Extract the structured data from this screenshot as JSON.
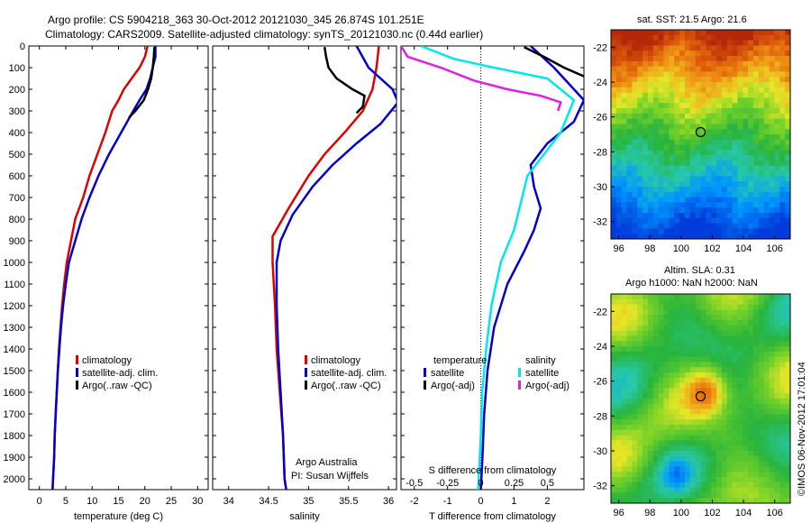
{
  "header": {
    "line1": "Argo profile: CS 5904218_363 30-Oct-2012 20121030_345 26.874S 101.251E",
    "line2": "Climatology: CARS2009. Satellite-adjusted climatology: synTS_20121030.nc (0.44d earlier)"
  },
  "colors": {
    "clim": "#e00000",
    "sat": "#0000d0",
    "argo": "#000000",
    "cyan": "#00e8e8",
    "magenta": "#e020e0"
  },
  "depth_axis": {
    "ylim": [
      0,
      2050
    ],
    "ticks": [
      0,
      100,
      200,
      300,
      400,
      500,
      600,
      700,
      800,
      900,
      1000,
      1100,
      1200,
      1300,
      1400,
      1500,
      1600,
      1700,
      1800,
      1900,
      2000
    ],
    "labels": [
      "0",
      "100",
      "200",
      "300",
      "400",
      "500",
      "600",
      "700",
      "800",
      "900",
      "1000",
      "1100",
      "1200",
      "1300",
      "1400",
      "1500",
      "1600",
      "1700",
      "1800",
      "1900",
      "2000"
    ]
  },
  "chart_data": [
    {
      "type": "line",
      "id": "temperature",
      "xlabel": "temperature (deg C)",
      "xlim": [
        -2,
        32
      ],
      "xticks": [
        0,
        5,
        10,
        15,
        20,
        25,
        30
      ],
      "xtick_labels": [
        "0",
        "5",
        "10",
        "15",
        "20",
        "25",
        "30"
      ],
      "legend": [
        "climatology",
        "satellite-adj. clim.",
        "Argo(..raw -QC)"
      ],
      "series": [
        {
          "name": "climatology",
          "color": "clim",
          "points": [
            [
              20.5,
              0
            ],
            [
              20,
              50
            ],
            [
              19,
              100
            ],
            [
              17.5,
              150
            ],
            [
              16,
              200
            ],
            [
              15,
              250
            ],
            [
              13.8,
              300
            ],
            [
              12.5,
              400
            ],
            [
              11,
              500
            ],
            [
              9.5,
              600
            ],
            [
              8.3,
              700
            ],
            [
              6.8,
              800
            ],
            [
              6,
              900
            ],
            [
              5.2,
              1000
            ],
            [
              4.7,
              1100
            ],
            [
              4.3,
              1200
            ],
            [
              4,
              1300
            ],
            [
              3.7,
              1400
            ],
            [
              3.5,
              1500
            ],
            [
              3.3,
              1600
            ],
            [
              3.1,
              1700
            ],
            [
              2.9,
              1800
            ],
            [
              2.8,
              1900
            ],
            [
              2.6,
              2000
            ],
            [
              2.5,
              2050
            ]
          ]
        },
        {
          "name": "satellite-adj. clim.",
          "color": "sat",
          "points": [
            [
              22,
              0
            ],
            [
              22,
              50
            ],
            [
              21.5,
              100
            ],
            [
              21,
              150
            ],
            [
              20.3,
              200
            ],
            [
              19,
              250
            ],
            [
              17.8,
              300
            ],
            [
              15.5,
              400
            ],
            [
              13.2,
              500
            ],
            [
              11.2,
              600
            ],
            [
              9.5,
              700
            ],
            [
              8,
              800
            ],
            [
              6.8,
              900
            ],
            [
              5.6,
              1000
            ],
            [
              5,
              1100
            ],
            [
              4.5,
              1200
            ],
            [
              4.1,
              1300
            ],
            [
              3.8,
              1400
            ],
            [
              3.5,
              1500
            ],
            [
              3.3,
              1600
            ],
            [
              3.1,
              1700
            ],
            [
              2.9,
              1800
            ],
            [
              2.8,
              1900
            ],
            [
              2.6,
              2000
            ],
            [
              2.5,
              2050
            ]
          ]
        },
        {
          "name": "Argo(..raw -QC)",
          "color": "argo",
          "points": [
            [
              21.8,
              5
            ],
            [
              21.7,
              50
            ],
            [
              21.5,
              100
            ],
            [
              21.2,
              150
            ],
            [
              20.6,
              200
            ],
            [
              19.8,
              250
            ],
            [
              18.2,
              300
            ],
            [
              17,
              330
            ]
          ]
        }
      ]
    },
    {
      "type": "line",
      "id": "salinity",
      "xlabel": "salinity",
      "xlim": [
        33.8,
        36.1
      ],
      "xticks": [
        34,
        34.5,
        35,
        35.5,
        36
      ],
      "xtick_labels": [
        "34",
        "34.5",
        "35",
        "35.5",
        "36"
      ],
      "legend": [
        "climatology",
        "satellite-adj. clim.",
        "Argo(..raw -QC)"
      ],
      "annotation": [
        "Argo Australia",
        "PI: Susan Wijffels"
      ],
      "series": [
        {
          "name": "climatology",
          "color": "clim",
          "points": [
            [
              35.88,
              0
            ],
            [
              35.85,
              100
            ],
            [
              35.8,
              200
            ],
            [
              35.68,
              300
            ],
            [
              35.45,
              400
            ],
            [
              35.2,
              500
            ],
            [
              35,
              600
            ],
            [
              34.75,
              750
            ],
            [
              34.55,
              880
            ],
            [
              34.55,
              1000
            ],
            [
              34.58,
              1200
            ],
            [
              34.6,
              1400
            ],
            [
              34.64,
              1600
            ],
            [
              34.68,
              1800
            ],
            [
              34.7,
              2000
            ],
            [
              34.72,
              2050
            ]
          ]
        },
        {
          "name": "satellite-adj. clim.",
          "color": "sat",
          "points": [
            [
              35.6,
              0
            ],
            [
              35.75,
              100
            ],
            [
              36.05,
              200
            ],
            [
              36.12,
              260
            ],
            [
              35.9,
              360
            ],
            [
              35.6,
              450
            ],
            [
              35.3,
              550
            ],
            [
              35.05,
              650
            ],
            [
              34.8,
              780
            ],
            [
              34.65,
              900
            ],
            [
              34.6,
              1000
            ],
            [
              34.6,
              1200
            ],
            [
              34.62,
              1400
            ],
            [
              34.65,
              1600
            ],
            [
              34.68,
              1800
            ],
            [
              34.7,
              2000
            ],
            [
              34.72,
              2050
            ]
          ]
        },
        {
          "name": "Argo(..raw -QC)",
          "color": "argo",
          "points": [
            [
              35.2,
              5
            ],
            [
              35.22,
              50
            ],
            [
              35.25,
              100
            ],
            [
              35.35,
              150
            ],
            [
              35.55,
              200
            ],
            [
              35.7,
              230
            ],
            [
              35.68,
              280
            ],
            [
              35.6,
              310
            ]
          ]
        }
      ]
    },
    {
      "type": "line",
      "id": "difference",
      "xlabel": "T difference from climatology",
      "xlim": [
        -2.4,
        3.1
      ],
      "xticks": [
        -2,
        -1,
        0,
        1,
        2
      ],
      "xtick_labels": [
        "-2",
        "-1",
        "0",
        "1",
        "2"
      ],
      "top_label": "S difference from climatology",
      "top_ticks": [
        -0.5,
        -0.25,
        0,
        0.25,
        0.5
      ],
      "top_tick_labels": [
        "-0.5",
        "-0.25",
        "0",
        "0.25",
        "0.5"
      ],
      "legend_left": {
        "title": "temperature",
        "items": [
          "satellite",
          "Argo(-adj)"
        ]
      },
      "legend_right": {
        "title": "salinity",
        "items": [
          "satellite",
          "Argo(-adj)"
        ]
      },
      "series": [
        {
          "name": "T satellite",
          "color": "sat",
          "points": [
            [
              1.5,
              0
            ],
            [
              2.2,
              100
            ],
            [
              2.8,
              200
            ],
            [
              3.1,
              250
            ],
            [
              2.8,
              350
            ],
            [
              2,
              450
            ],
            [
              1.5,
              550
            ],
            [
              1.6,
              650
            ],
            [
              1.8,
              750
            ],
            [
              1.6,
              850
            ],
            [
              1.3,
              950
            ],
            [
              0.8,
              1100
            ],
            [
              0.4,
              1300
            ],
            [
              0.2,
              1500
            ],
            [
              0.1,
              1700
            ],
            [
              0.05,
              1900
            ],
            [
              0,
              2050
            ]
          ]
        },
        {
          "name": "T Argo(-adj)",
          "color": "argo",
          "points": [
            [
              1.3,
              5
            ],
            [
              1.9,
              50
            ],
            [
              2.5,
              100
            ],
            [
              3.1,
              140
            ]
          ]
        },
        {
          "name": "S satellite",
          "color": "cyan",
          "points": [
            [
              -0.45,
              0
            ],
            [
              -0.2,
              60
            ],
            [
              0.1,
              100
            ],
            [
              0.5,
              150
            ],
            [
              0.7,
              250
            ],
            [
              0.6,
              400
            ],
            [
              0.35,
              600
            ],
            [
              0.25,
              850
            ],
            [
              0.15,
              1000
            ],
            [
              0.08,
              1200
            ],
            [
              0.04,
              1400
            ],
            [
              0.01,
              1600
            ],
            [
              0,
              1800
            ],
            [
              -0.02,
              2050
            ]
          ]
        },
        {
          "name": "S Argo(-adj)",
          "color": "magenta",
          "points": [
            [
              -0.6,
              0
            ],
            [
              -0.55,
              50
            ],
            [
              -0.3,
              100
            ],
            [
              -0.05,
              160
            ],
            [
              0.2,
              200
            ],
            [
              0.45,
              230
            ],
            [
              0.6,
              260
            ],
            [
              0.58,
              300
            ]
          ]
        }
      ]
    },
    {
      "type": "heatmap",
      "id": "sst_map",
      "title": "sat. SST: 21.5  Argo: 21.6",
      "xlim": [
        95.5,
        107
      ],
      "ylim": [
        -33,
        -21
      ],
      "xticks": [
        96,
        98,
        100,
        102,
        104,
        106
      ],
      "xtick_labels": [
        "96",
        "98",
        "100",
        "102",
        "104",
        "106"
      ],
      "yticks": [
        -22,
        -24,
        -26,
        -28,
        -30,
        -32
      ],
      "ytick_labels": [
        "-22",
        "-24",
        "-26",
        "-28",
        "-30",
        "-32"
      ],
      "marker": [
        101.25,
        -26.87
      ]
    },
    {
      "type": "heatmap",
      "id": "sla_map",
      "title": "Altim. SLA: 0.31",
      "subtitle": "Argo h1000: NaN h2000: NaN",
      "xlim": [
        95.5,
        107
      ],
      "ylim": [
        -33,
        -21
      ],
      "xticks": [
        96,
        98,
        100,
        102,
        104,
        106
      ],
      "xtick_labels": [
        "96",
        "98",
        "100",
        "102",
        "104",
        "106"
      ],
      "yticks": [
        -22,
        -24,
        -26,
        -28,
        -30,
        -32
      ],
      "ytick_labels": [
        "-22",
        "-24",
        "-26",
        "-28",
        "-30",
        "-32"
      ],
      "marker": [
        101.25,
        -26.87
      ]
    }
  ],
  "side_label": "©IMOS 06-Nov-2012 17:01:04"
}
